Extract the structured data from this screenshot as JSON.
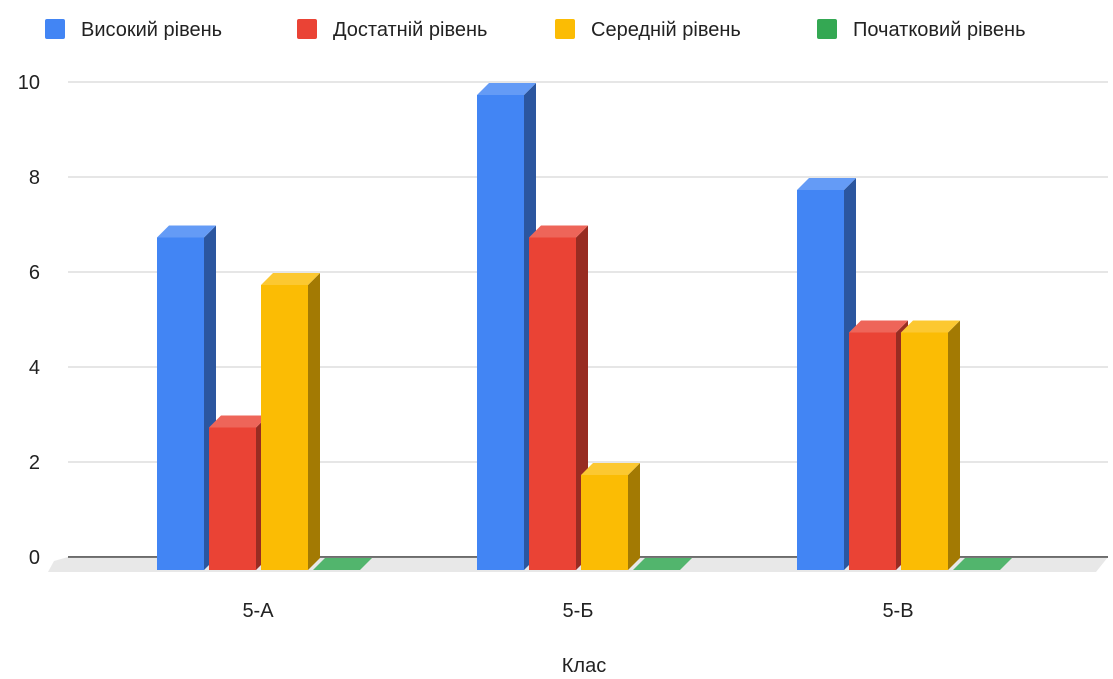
{
  "chart_data": {
    "type": "bar",
    "title": "",
    "xlabel": "Клас",
    "ylabel": "",
    "categories": [
      "5-А",
      "5-Б",
      "5-В"
    ],
    "series": [
      {
        "name": "Високий рівень",
        "color": "#4285F4",
        "values": [
          7,
          10,
          8
        ]
      },
      {
        "name": "Достатній рівень",
        "color": "#EA4335",
        "values": [
          3,
          7,
          5
        ]
      },
      {
        "name": "Середній рівень",
        "color": "#FBBC04",
        "values": [
          6,
          2,
          5
        ]
      },
      {
        "name": "Початковий рівень",
        "color": "#34A853",
        "values": [
          0,
          0,
          0
        ]
      }
    ],
    "y_ticks": [
      "0",
      "2",
      "4",
      "6",
      "8",
      "10"
    ],
    "ylim": [
      0,
      10
    ],
    "grid": true,
    "legend_position": "top",
    "style": "3d"
  }
}
